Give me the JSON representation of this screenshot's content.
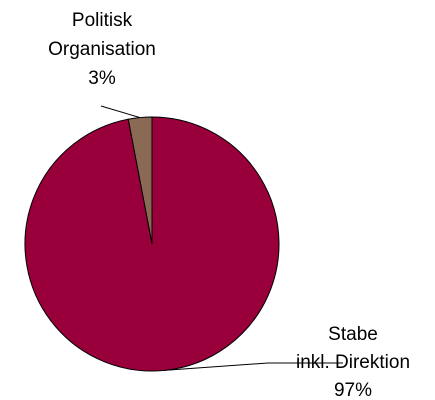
{
  "chart_data": {
    "type": "pie",
    "slices": [
      {
        "label_lines": [
          "Politisk",
          "Organisation"
        ],
        "percent_label": "3%",
        "value": 3,
        "color": "#8b6a55"
      },
      {
        "label_lines": [
          "Stabe",
          "inkl. Direktion"
        ],
        "percent_label": "97%",
        "value": 97,
        "color": "#99003b"
      }
    ],
    "start_angle_deg": 0,
    "direction": "counterclockwise",
    "legend": "none",
    "labels": "outside with leader lines"
  }
}
